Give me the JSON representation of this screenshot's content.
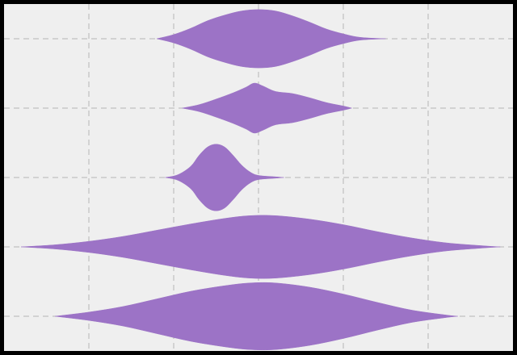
{
  "chart_data": {
    "type": "violin",
    "orientation": "horizontal",
    "title": "",
    "xlabel": "",
    "ylabel": "",
    "grid": true,
    "colors": {
      "figure_background": "#000000",
      "plot_background": "#efefef",
      "grid": "#b5b5b5",
      "violin_fill": "#9c73c6"
    },
    "xlim": [
      -3,
      3
    ],
    "ylim": [
      0.5,
      5.5
    ],
    "series": [
      {
        "position": 1,
        "profile": [
          [
            -2.4,
            0.0
          ],
          [
            -2.0,
            0.06
          ],
          [
            -1.6,
            0.14
          ],
          [
            -1.2,
            0.25
          ],
          [
            -0.8,
            0.36
          ],
          [
            -0.4,
            0.44
          ],
          [
            -0.1,
            0.48
          ],
          [
            0.2,
            0.48
          ],
          [
            0.6,
            0.42
          ],
          [
            1.0,
            0.32
          ],
          [
            1.4,
            0.2
          ],
          [
            1.8,
            0.09
          ],
          [
            2.2,
            0.02
          ],
          [
            2.35,
            0.0
          ]
        ]
      },
      {
        "position": 2,
        "profile": [
          [
            -2.8,
            0.0
          ],
          [
            -2.4,
            0.03
          ],
          [
            -2.0,
            0.08
          ],
          [
            -1.6,
            0.15
          ],
          [
            -1.2,
            0.24
          ],
          [
            -0.8,
            0.33
          ],
          [
            -0.4,
            0.41
          ],
          [
            -0.1,
            0.45
          ],
          [
            0.2,
            0.45
          ],
          [
            0.6,
            0.4
          ],
          [
            1.0,
            0.32
          ],
          [
            1.4,
            0.22
          ],
          [
            1.8,
            0.13
          ],
          [
            2.2,
            0.06
          ],
          [
            2.6,
            0.02
          ],
          [
            2.85,
            0.0
          ]
        ]
      },
      {
        "position": 3,
        "profile": [
          [
            -1.1,
            0.0
          ],
          [
            -0.95,
            0.04
          ],
          [
            -0.8,
            0.16
          ],
          [
            -0.7,
            0.32
          ],
          [
            -0.6,
            0.44
          ],
          [
            -0.5,
            0.48
          ],
          [
            -0.4,
            0.44
          ],
          [
            -0.3,
            0.32
          ],
          [
            -0.2,
            0.18
          ],
          [
            -0.1,
            0.08
          ],
          [
            0.0,
            0.03
          ],
          [
            0.2,
            0.01
          ],
          [
            0.3,
            0.0
          ]
        ]
      },
      {
        "position": 4,
        "profile": [
          [
            -0.9,
            0.0
          ],
          [
            -0.7,
            0.05
          ],
          [
            -0.5,
            0.13
          ],
          [
            -0.3,
            0.22
          ],
          [
            -0.15,
            0.3
          ],
          [
            -0.05,
            0.36
          ],
          [
            0.05,
            0.32
          ],
          [
            0.2,
            0.24
          ],
          [
            0.4,
            0.21
          ],
          [
            0.6,
            0.15
          ],
          [
            0.8,
            0.08
          ],
          [
            1.0,
            0.03
          ],
          [
            1.1,
            0.0
          ]
        ]
      },
      {
        "position": 5,
        "profile": [
          [
            -1.2,
            0.0
          ],
          [
            -1.0,
            0.06
          ],
          [
            -0.8,
            0.15
          ],
          [
            -0.6,
            0.26
          ],
          [
            -0.4,
            0.34
          ],
          [
            -0.2,
            0.4
          ],
          [
            0.0,
            0.42
          ],
          [
            0.2,
            0.4
          ],
          [
            0.4,
            0.33
          ],
          [
            0.6,
            0.24
          ],
          [
            0.8,
            0.14
          ],
          [
            1.0,
            0.07
          ],
          [
            1.2,
            0.02
          ],
          [
            1.5,
            0.0
          ]
        ]
      }
    ]
  }
}
